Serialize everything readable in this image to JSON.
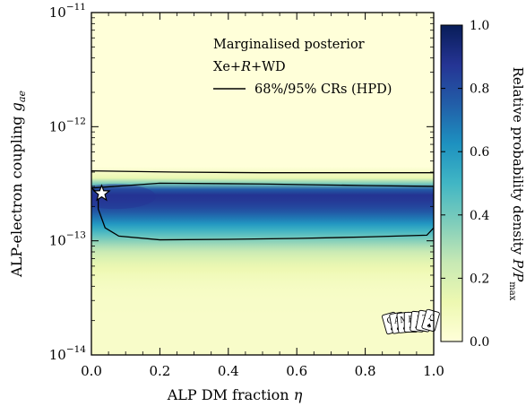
{
  "chart_data": {
    "type": "heatmap",
    "xlabel": "ALP DM fraction η",
    "ylabel": "ALP-electron coupling g",
    "ylabel_subscript": "ae",
    "xlim": [
      0.0,
      1.0
    ],
    "ylim": [
      1e-14,
      1e-11
    ],
    "yscale": "log",
    "x_ticks": [
      "0.0",
      "0.2",
      "0.4",
      "0.6",
      "0.8",
      "1.0"
    ],
    "y_ticks": [
      {
        "base": "10",
        "exp": "−14",
        "value": 1e-14
      },
      {
        "base": "10",
        "exp": "−13",
        "value": 1e-13
      },
      {
        "base": "10",
        "exp": "−12",
        "value": 1e-12
      },
      {
        "base": "10",
        "exp": "−11",
        "value": 1e-11
      }
    ],
    "legend": {
      "position": "top-right",
      "lines": [
        "Marginalised posterior",
        "Xe+R+WD",
        "68%/95% CRs (HPD)"
      ]
    },
    "colorbar": {
      "label": "Relative probability density P/P",
      "label_subscript": "max",
      "ticks": [
        "0.0",
        "0.2",
        "0.4",
        "0.6",
        "0.8",
        "1.0"
      ],
      "range": [
        0.0,
        1.0
      ],
      "colors": [
        "#ffffd9",
        "#edf8b1",
        "#c7e9b4",
        "#7fcdbb",
        "#41b6c4",
        "#1d91c0",
        "#225ea8",
        "#253494",
        "#081d58"
      ]
    },
    "best_fit": {
      "x": 0.03,
      "y": 2.6e-13
    },
    "contour_95": [
      [
        0.0,
        4.1e-13
      ],
      [
        0.25,
        4e-13
      ],
      [
        0.5,
        3.95e-13
      ],
      [
        0.75,
        3.95e-13
      ],
      [
        1.0,
        3.95e-13
      ]
    ],
    "contour_68": [
      [
        0.0,
        2.9e-13
      ],
      [
        0.02,
        2.6e-13
      ],
      [
        0.02,
        1.9e-13
      ],
      [
        0.04,
        1.3e-13
      ],
      [
        0.08,
        1.1e-13
      ],
      [
        0.2,
        1.02e-13
      ],
      [
        0.4,
        1.03e-13
      ],
      [
        0.6,
        1.05e-13
      ],
      [
        0.8,
        1.08e-13
      ],
      [
        0.98,
        1.12e-13
      ],
      [
        1.0,
        1.3e-13
      ],
      [
        1.0,
        3e-13
      ],
      [
        0.8,
        3.05e-13
      ],
      [
        0.5,
        3.15e-13
      ],
      [
        0.2,
        3.2e-13
      ],
      [
        0.0,
        2.9e-13
      ]
    ],
    "logo_letters": [
      "G",
      "A",
      "M",
      "B",
      "I",
      "T",
      "ℒ"
    ]
  }
}
